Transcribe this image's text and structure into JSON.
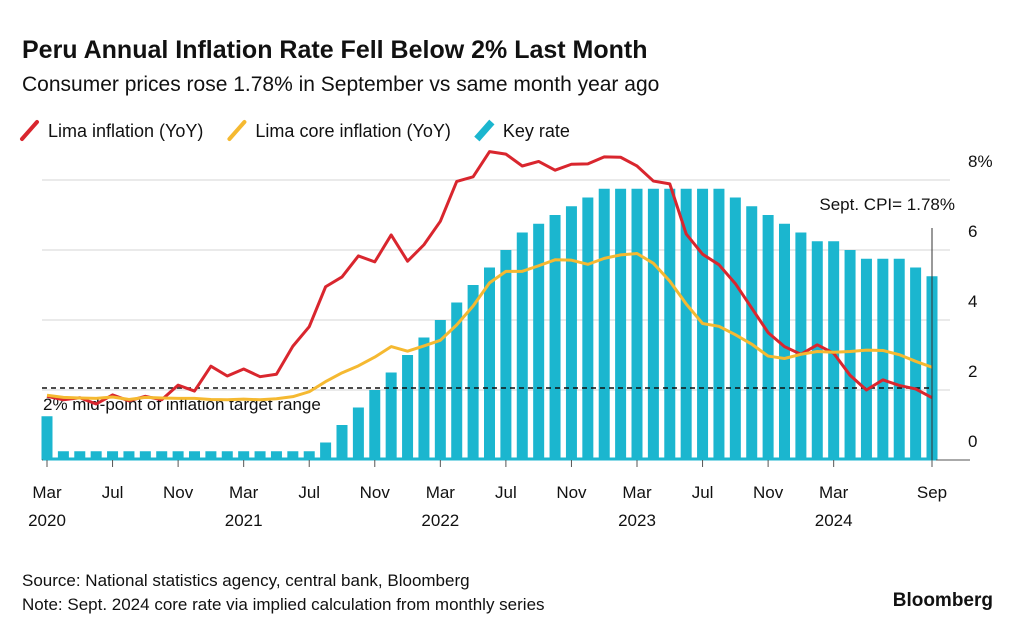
{
  "chart_data": {
    "type": "bar-line",
    "title": "Peru Annual Inflation Rate Fell Below 2% Last Month",
    "subtitle": "Consumer prices rose 1.78% in September vs same month year ago",
    "x": [
      "2020-03",
      "2020-04",
      "2020-05",
      "2020-06",
      "2020-07",
      "2020-08",
      "2020-09",
      "2020-10",
      "2020-11",
      "2020-12",
      "2021-01",
      "2021-02",
      "2021-03",
      "2021-04",
      "2021-05",
      "2021-06",
      "2021-07",
      "2021-08",
      "2021-09",
      "2021-10",
      "2021-11",
      "2021-12",
      "2022-01",
      "2022-02",
      "2022-03",
      "2022-04",
      "2022-05",
      "2022-06",
      "2022-07",
      "2022-08",
      "2022-09",
      "2022-10",
      "2022-11",
      "2022-12",
      "2023-01",
      "2023-02",
      "2023-03",
      "2023-04",
      "2023-05",
      "2023-06",
      "2023-07",
      "2023-08",
      "2023-09",
      "2023-10",
      "2023-11",
      "2023-12",
      "2024-01",
      "2024-02",
      "2024-03",
      "2024-04",
      "2024-05",
      "2024-06",
      "2024-07",
      "2024-08",
      "2024-09"
    ],
    "series": [
      {
        "name": "Lima inflation (YoY)",
        "kind": "line",
        "color": "#d9262e",
        "values": [
          1.82,
          1.72,
          1.78,
          1.6,
          1.86,
          1.69,
          1.82,
          1.72,
          2.14,
          1.97,
          2.68,
          2.4,
          2.6,
          2.38,
          2.45,
          3.25,
          3.81,
          4.95,
          5.23,
          5.83,
          5.66,
          6.43,
          5.68,
          6.15,
          6.82,
          7.96,
          8.09,
          8.81,
          8.74,
          8.4,
          8.53,
          8.28,
          8.45,
          8.46,
          8.66,
          8.65,
          8.4,
          7.97,
          7.89,
          6.46,
          5.88,
          5.58,
          5.04,
          4.34,
          3.64,
          3.24,
          3.02,
          3.29,
          3.05,
          2.42,
          2.0,
          2.29,
          2.13,
          2.03,
          1.78
        ]
      },
      {
        "name": "Lima core inflation (YoY)",
        "kind": "line",
        "color": "#f5b931",
        "values": [
          1.85,
          1.79,
          1.77,
          1.76,
          1.8,
          1.73,
          1.79,
          1.77,
          1.76,
          1.76,
          1.73,
          1.72,
          1.74,
          1.72,
          1.75,
          1.81,
          1.95,
          2.24,
          2.49,
          2.69,
          2.94,
          3.24,
          3.11,
          3.26,
          3.42,
          3.86,
          4.4,
          5.06,
          5.39,
          5.39,
          5.55,
          5.72,
          5.71,
          5.59,
          5.76,
          5.86,
          5.9,
          5.62,
          5.11,
          4.46,
          3.9,
          3.82,
          3.58,
          3.31,
          2.97,
          2.9,
          3.02,
          3.1,
          3.08,
          3.1,
          3.14,
          3.13,
          3.01,
          2.82,
          2.65
        ]
      },
      {
        "name": "Key rate",
        "kind": "bar",
        "color": "#1bb6cf",
        "values": [
          1.25,
          0.25,
          0.25,
          0.25,
          0.25,
          0.25,
          0.25,
          0.25,
          0.25,
          0.25,
          0.25,
          0.25,
          0.25,
          0.25,
          0.25,
          0.25,
          0.25,
          0.5,
          1,
          1.5,
          2,
          2.5,
          3,
          3.5,
          4,
          4.5,
          5,
          5.5,
          6,
          6.5,
          6.75,
          7,
          7.25,
          7.5,
          7.75,
          7.75,
          7.75,
          7.75,
          7.75,
          7.75,
          7.75,
          7.75,
          7.5,
          7.25,
          7,
          6.75,
          6.5,
          6.25,
          6.25,
          6,
          5.75,
          5.75,
          5.75,
          5.5,
          5.25
        ]
      }
    ],
    "ylim": [
      0,
      9
    ],
    "yticks": [
      0,
      2,
      4,
      6,
      {
        "value": 8,
        "label": "8%"
      }
    ],
    "xticks": [
      {
        "value": "2020-03",
        "label": "Mar"
      },
      {
        "value": "2020-07",
        "label": "Jul"
      },
      {
        "value": "2020-11",
        "label": "Nov"
      },
      {
        "value": "2021-03",
        "label": "Mar"
      },
      {
        "value": "2021-07",
        "label": "Jul"
      },
      {
        "value": "2021-11",
        "label": "Nov"
      },
      {
        "value": "2022-03",
        "label": "Mar"
      },
      {
        "value": "2022-07",
        "label": "Jul"
      },
      {
        "value": "2022-11",
        "label": "Nov"
      },
      {
        "value": "2023-03",
        "label": "Mar"
      },
      {
        "value": "2023-07",
        "label": "Jul"
      },
      {
        "value": "2023-11",
        "label": "Nov"
      },
      {
        "value": "2024-03",
        "label": "Mar"
      },
      {
        "value": "2024-09",
        "label": "Sep"
      }
    ],
    "xtick_years": [
      {
        "value": "2020-03",
        "label": "2020"
      },
      {
        "value": "2021-03",
        "label": "2021"
      },
      {
        "value": "2022-03",
        "label": "2022"
      },
      {
        "value": "2023-03",
        "label": "2023"
      },
      {
        "value": "2024-03",
        "label": "2024"
      }
    ],
    "grid": true,
    "reference_line": {
      "value": 2,
      "label": "2% mid-point of inflation target range"
    },
    "annotation": {
      "x": "2024-09",
      "label": "Sept. CPI= 1.78%"
    },
    "source": "Source: National statistics agency, central bank, Bloomberg",
    "note": "Note: Sept. 2024 core rate via implied calculation from monthly series",
    "brand": "Bloomberg"
  }
}
